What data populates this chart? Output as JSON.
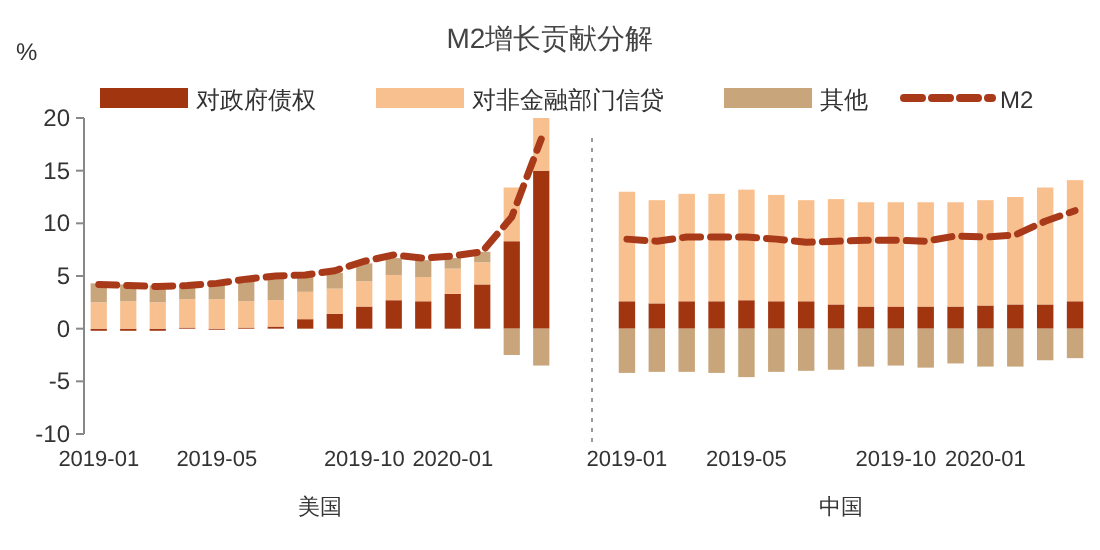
{
  "chart_data": [
    {
      "type": "bar",
      "title": "M2增长贡献分解",
      "ylabel": "%",
      "xlabel": "美国",
      "stacked": true,
      "legend": "top",
      "ylim": [
        -10,
        20
      ],
      "yticks": [
        -10,
        -5,
        0,
        5,
        10,
        15,
        20
      ],
      "categories": [
        "2019-01",
        null,
        null,
        null,
        "2019-05",
        null,
        null,
        null,
        null,
        "2019-10",
        null,
        null,
        "2020-01",
        null,
        null,
        null
      ],
      "series": [
        {
          "name": "对政府债权",
          "color": "#a0350f",
          "values": [
            -0.2,
            -0.2,
            -0.2,
            0.1,
            -0.1,
            0.1,
            0.2,
            0.9,
            1.4,
            2.1,
            2.7,
            2.6,
            3.3,
            4.2,
            8.3,
            15.0
          ]
        },
        {
          "name": "对非金融部门信贷",
          "color": "#f9c08f",
          "values": [
            2.5,
            2.6,
            2.5,
            2.7,
            2.8,
            2.5,
            2.5,
            2.6,
            2.4,
            2.4,
            2.4,
            2.3,
            2.4,
            2.1,
            5.1,
            5.0
          ]
        },
        {
          "name": "其他",
          "color": "#c8a57a",
          "values": [
            1.8,
            1.6,
            1.6,
            1.3,
            1.6,
            2.0,
            2.0,
            1.5,
            1.5,
            1.7,
            1.6,
            1.6,
            1.0,
            1.0,
            -2.5,
            -3.5
          ]
        },
        {
          "name": "M2",
          "type": "line",
          "line_style": "dashed",
          "color": "#a83a1a",
          "values": [
            4.2,
            4.1,
            4.0,
            4.1,
            4.3,
            4.7,
            5.0,
            5.1,
            5.5,
            6.4,
            7.0,
            6.7,
            6.9,
            7.3,
            10.6,
            18.0
          ]
        }
      ]
    },
    {
      "type": "bar",
      "xlabel": "中国",
      "stacked": true,
      "tick_labels": "x",
      "ylim": [
        -10,
        20
      ],
      "categories": [
        "2019-01",
        null,
        null,
        null,
        "2019-05",
        null,
        null,
        null,
        null,
        "2019-10",
        null,
        null,
        "2020-01",
        null,
        null,
        null
      ],
      "series": [
        {
          "color": "#a0350f",
          "values": [
            2.6,
            2.4,
            2.6,
            2.6,
            2.7,
            2.6,
            2.6,
            2.3,
            2.1,
            2.1,
            2.1,
            2.1,
            2.2,
            2.3,
            2.3,
            2.6
          ]
        },
        {
          "color": "#f9c08f",
          "values": [
            10.4,
            9.8,
            10.2,
            10.2,
            10.5,
            10.1,
            9.6,
            10.0,
            9.9,
            9.9,
            9.9,
            9.9,
            10.0,
            10.2,
            11.1,
            11.5
          ]
        },
        {
          "color": "#c8a57a",
          "values": [
            -4.2,
            -4.1,
            -4.1,
            -4.2,
            -4.6,
            -4.1,
            -4.0,
            -3.9,
            -3.6,
            -3.5,
            -3.7,
            -3.3,
            -3.6,
            -3.6,
            -3.0,
            -2.8
          ]
        },
        {
          "type": "line",
          "line_style": "dashed",
          "color": "#a83a1a",
          "values": [
            8.5,
            8.3,
            8.7,
            8.7,
            8.7,
            8.5,
            8.2,
            8.3,
            8.4,
            8.4,
            8.3,
            8.8,
            8.7,
            8.9,
            10.2,
            11.2
          ]
        }
      ]
    }
  ]
}
